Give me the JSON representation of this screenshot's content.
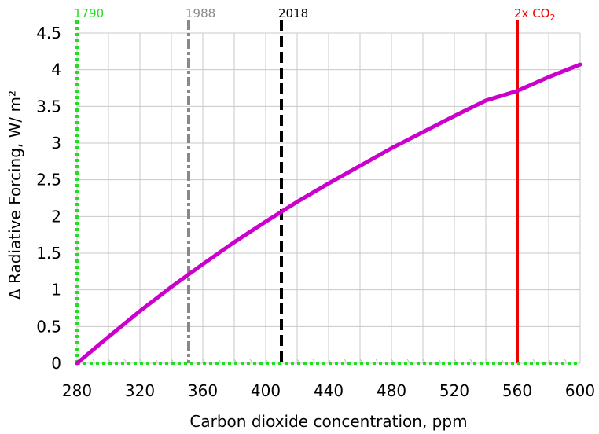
{
  "chart_data": {
    "type": "line",
    "xlabel": "Carbon dioxide concentration, ppm",
    "ylabel": "Δ Radiative Forcing, W/ m²",
    "xlim": [
      280,
      600
    ],
    "ylim": [
      0,
      4.5
    ],
    "x_ticks": [
      "280",
      "320",
      "360",
      "400",
      "440",
      "480",
      "520",
      "560",
      "600"
    ],
    "y_ticks": [
      "0",
      "0.5",
      "1",
      "1.5",
      "2",
      "2.5",
      "3",
      "3.5",
      "4",
      "4.5"
    ],
    "grid": true,
    "series": [
      {
        "color": "#cc00cc",
        "x": [
          280,
          300,
          320,
          340,
          360,
          380,
          400,
          420,
          440,
          460,
          480,
          500,
          520,
          540,
          560,
          580,
          600
        ],
        "y": [
          0,
          0.36,
          0.71,
          1.04,
          1.35,
          1.65,
          1.93,
          2.2,
          2.45,
          2.69,
          2.93,
          3.15,
          3.37,
          3.58,
          3.71,
          3.9,
          4.07
        ]
      }
    ],
    "markers": [
      {
        "label": "1790",
        "x": 280,
        "color": "#22dd22",
        "style": "dotted"
      },
      {
        "label": "1988",
        "x": 351,
        "color": "#888888",
        "style": "dashdot"
      },
      {
        "label": "2018",
        "x": 410,
        "color": "#000000",
        "style": "dashed"
      },
      {
        "label": "2x CO",
        "label_sub": "2",
        "x": 560,
        "color": "#ee0000",
        "style": "solid"
      }
    ]
  }
}
